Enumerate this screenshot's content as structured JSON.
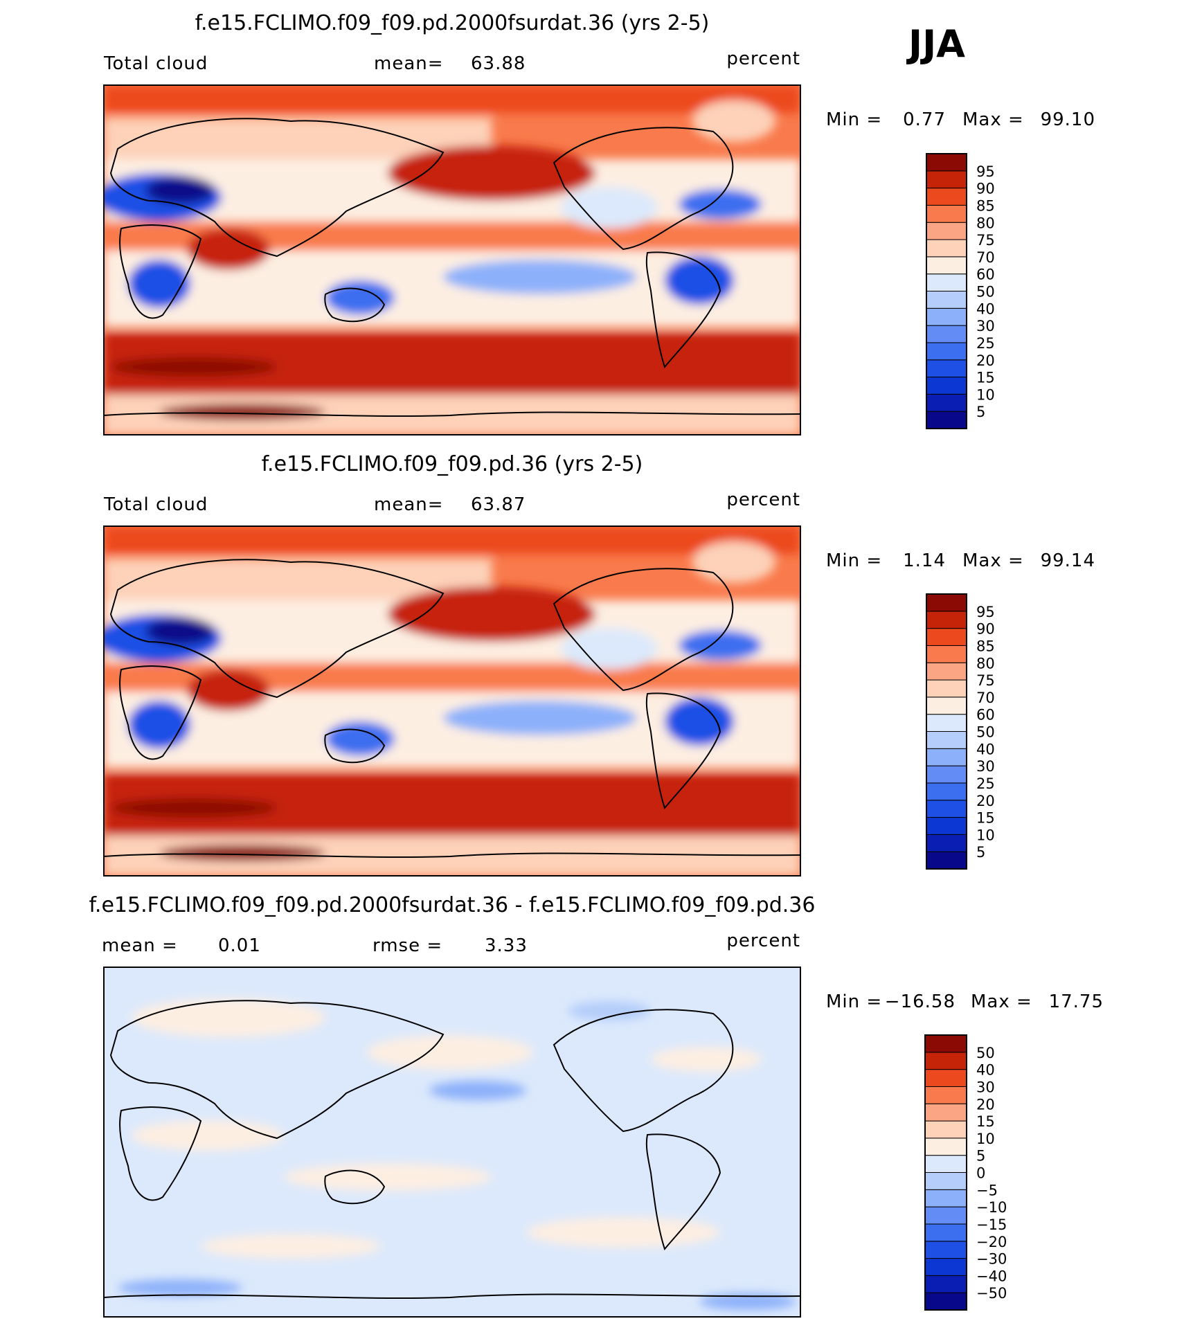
{
  "season": "JJA",
  "chart_data": [
    {
      "type": "heatmap",
      "title": "f.e15.FCLIMO.f09_f09.pd.2000fsurdat.36 (yrs 2-5)",
      "variable": "Total cloud",
      "stat_label": "mean=",
      "stat_value": "63.88",
      "units": "percent",
      "min_label": "Min =",
      "min": "0.77",
      "max_label": "Max =",
      "max": "99.10",
      "levels": [
        "5",
        "10",
        "15",
        "20",
        "25",
        "30",
        "40",
        "50",
        "60",
        "70",
        "75",
        "80",
        "85",
        "90",
        "95"
      ],
      "colors": [
        "#08088a",
        "#0a1eb4",
        "#0c37d2",
        "#1e50e6",
        "#3c6ef0",
        "#648cf5",
        "#8cb0fa",
        "#b4cdfa",
        "#dce9fc",
        "#fdeee2",
        "#fdd2b9",
        "#fca584",
        "#f97a4c",
        "#ec4a1e",
        "#c62408",
        "#8c0a04"
      ],
      "x": "longitude",
      "y": "latitude"
    },
    {
      "type": "heatmap",
      "title": "f.e15.FCLIMO.f09_f09.pd.36 (yrs 2-5)",
      "variable": "Total cloud",
      "stat_label": "mean=",
      "stat_value": "63.87",
      "units": "percent",
      "min_label": "Min =",
      "min": "1.14",
      "max_label": "Max =",
      "max": "99.14",
      "levels": [
        "5",
        "10",
        "15",
        "20",
        "25",
        "30",
        "40",
        "50",
        "60",
        "70",
        "75",
        "80",
        "85",
        "90",
        "95"
      ],
      "colors": [
        "#08088a",
        "#0a1eb4",
        "#0c37d2",
        "#1e50e6",
        "#3c6ef0",
        "#648cf5",
        "#8cb0fa",
        "#b4cdfa",
        "#dce9fc",
        "#fdeee2",
        "#fdd2b9",
        "#fca584",
        "#f97a4c",
        "#ec4a1e",
        "#c62408",
        "#8c0a04"
      ],
      "x": "longitude",
      "y": "latitude"
    },
    {
      "type": "heatmap",
      "title": "f.e15.FCLIMO.f09_f09.pd.2000fsurdat.36 - f.e15.FCLIMO.f09_f09.pd.36",
      "stat_label": "mean =",
      "stat_value": "0.01",
      "stat2_label": "rmse =",
      "stat2_value": "3.33",
      "units": "percent",
      "min_label": "Min =",
      "min": "−16.58",
      "max_label": "Max =",
      "max": "17.75",
      "levels": [
        "−50",
        "−40",
        "−30",
        "−20",
        "−15",
        "−10",
        "−5",
        "0",
        "5",
        "10",
        "15",
        "20",
        "30",
        "40",
        "50"
      ],
      "colors": [
        "#08088a",
        "#0a1eb4",
        "#0c37d2",
        "#1e50e6",
        "#3c6ef0",
        "#648cf5",
        "#8cb0fa",
        "#b4cdfa",
        "#dce9fc",
        "#fdeee2",
        "#fdd2b9",
        "#fca584",
        "#f97a4c",
        "#ec4a1e",
        "#c62408",
        "#8c0a04"
      ],
      "x": "longitude",
      "y": "latitude"
    }
  ]
}
